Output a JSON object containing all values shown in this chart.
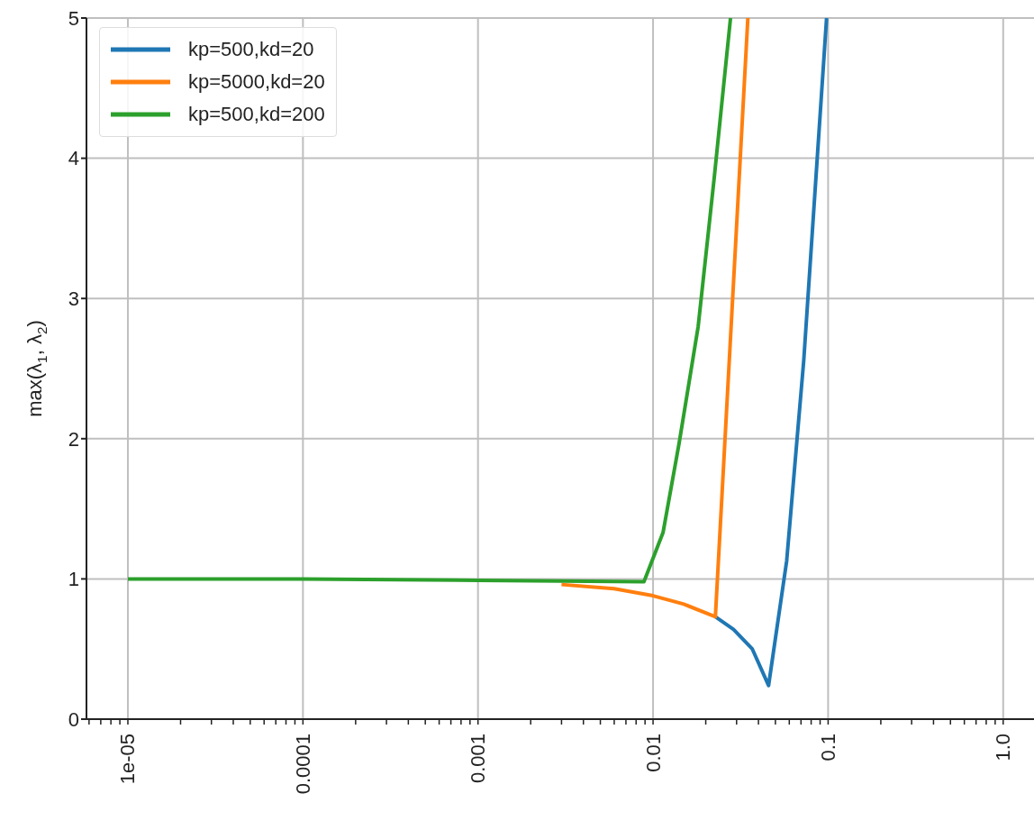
{
  "chart_data": {
    "type": "line",
    "ylabel": "max(λ$_{1}$, λ$_{2}$)",
    "log": "x",
    "grid": true,
    "legend": "top left",
    "marker": "none",
    "line_style": "solid",
    "xlim": [
      5.8e-06,
      1.5
    ],
    "ylim": [
      0,
      5
    ],
    "yticks": [
      0,
      1,
      2,
      3,
      4,
      5
    ],
    "xticks": [
      {
        "value": 6e-06,
        "label": null
      },
      {
        "value": 7e-06,
        "label": null
      },
      {
        "value": 8e-06,
        "label": null
      },
      {
        "value": 9e-06,
        "label": null
      },
      {
        "value": 1e-05,
        "label": "1e-05"
      },
      {
        "value": 2e-05,
        "label": null
      },
      {
        "value": 3e-05,
        "label": null
      },
      {
        "value": 4e-05,
        "label": null
      },
      {
        "value": 5e-05,
        "label": null
      },
      {
        "value": 6e-05,
        "label": null
      },
      {
        "value": 7e-05,
        "label": null
      },
      {
        "value": 8e-05,
        "label": null
      },
      {
        "value": 9e-05,
        "label": null
      },
      {
        "value": 0.0001,
        "label": "0.0001"
      },
      {
        "value": 0.0002,
        "label": null
      },
      {
        "value": 0.0003,
        "label": null
      },
      {
        "value": 0.0004,
        "label": null
      },
      {
        "value": 0.0005,
        "label": null
      },
      {
        "value": 0.0006,
        "label": null
      },
      {
        "value": 0.0007,
        "label": null
      },
      {
        "value": 0.0008,
        "label": null
      },
      {
        "value": 0.0009,
        "label": null
      },
      {
        "value": 0.001,
        "label": "0.001"
      },
      {
        "value": 0.002,
        "label": null
      },
      {
        "value": 0.003,
        "label": null
      },
      {
        "value": 0.004,
        "label": null
      },
      {
        "value": 0.005,
        "label": null
      },
      {
        "value": 0.006,
        "label": null
      },
      {
        "value": 0.007,
        "label": null
      },
      {
        "value": 0.008,
        "label": null
      },
      {
        "value": 0.009,
        "label": null
      },
      {
        "value": 0.01,
        "label": "0.01"
      },
      {
        "value": 0.02,
        "label": null
      },
      {
        "value": 0.03,
        "label": null
      },
      {
        "value": 0.04,
        "label": null
      },
      {
        "value": 0.05,
        "label": null
      },
      {
        "value": 0.06,
        "label": null
      },
      {
        "value": 0.07,
        "label": null
      },
      {
        "value": 0.08,
        "label": null
      },
      {
        "value": 0.09,
        "label": null
      },
      {
        "value": 0.1,
        "label": "0.1"
      },
      {
        "value": 0.2,
        "label": null
      },
      {
        "value": 0.3,
        "label": null
      },
      {
        "value": 0.4,
        "label": null
      },
      {
        "value": 0.5,
        "label": null
      },
      {
        "value": 0.6,
        "label": null
      },
      {
        "value": 0.7,
        "label": null
      },
      {
        "value": 0.8,
        "label": null
      },
      {
        "value": 0.9,
        "label": null
      },
      {
        "value": 1,
        "label": "1.0"
      }
    ],
    "series": [
      {
        "name": "kp=500,kd=20",
        "color": "#1f77b4",
        "x": [
          0.0227,
          0.0288,
          0.0369,
          0.0457,
          0.058,
          0.0726,
          0.098
        ],
        "values": [
          0.73,
          0.64,
          0.5,
          0.24,
          1.13,
          2.56,
          5.0
        ]
      },
      {
        "name": "kp=5000,kd=20",
        "color": "#ff7f0e",
        "x": [
          0.003,
          0.006,
          0.01,
          0.015,
          0.0227,
          0.0348
        ],
        "values": [
          0.96,
          0.93,
          0.88,
          0.82,
          0.73,
          5.0
        ]
      },
      {
        "name": "kp=500,kd=200",
        "color": "#2ca02c",
        "x": [
          1e-05,
          0.0001,
          0.001,
          0.00887,
          0.0114,
          0.0141,
          0.0181,
          0.0224,
          0.0277
        ],
        "values": [
          1.0,
          1.0,
          0.99,
          0.98,
          1.33,
          1.97,
          2.8,
          3.87,
          5.0
        ]
      }
    ]
  }
}
